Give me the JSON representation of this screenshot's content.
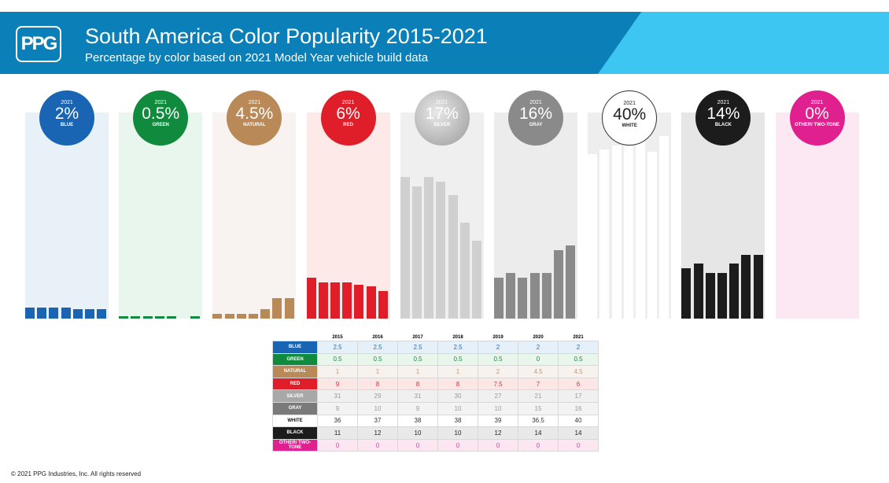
{
  "header": {
    "logo": "PPG",
    "title": "South America Color Popularity 2015-2021",
    "subtitle": "Percentage by color based on 2021 Model Year vehicle build data"
  },
  "chart_data": {
    "type": "bar",
    "title": "South America Color Popularity 2015-2021",
    "subtitle": "Percentage by color based on 2021 Model Year vehicle build data",
    "categories": [
      "2015",
      "2016",
      "2017",
      "2018",
      "2019",
      "2020",
      "2021"
    ],
    "highlight_year": "2021",
    "series": [
      {
        "name": "BLUE",
        "pct": "2%",
        "color": "#1a64b4",
        "bg": "#e8f0f8",
        "rowbg": "#e6f0f9",
        "text": "#2a6db5",
        "values": [
          2.5,
          2.5,
          2.5,
          2.5,
          2,
          2,
          2
        ]
      },
      {
        "name": "GREEN",
        "pct": "0.5%",
        "color": "#108a3c",
        "bg": "#e9f6ee",
        "rowbg": "#e8f6ec",
        "text": "#1f8a48",
        "values": [
          0.5,
          0.5,
          0.5,
          0.5,
          0.5,
          0,
          0.5
        ]
      },
      {
        "name": "NATURAL",
        "pct": "4.5%",
        "color": "#b98a58",
        "bg": "#f8f3f0",
        "rowbg": "#f8f2ee",
        "text": "#c09a78",
        "values": [
          1,
          1,
          1,
          1,
          2,
          4.5,
          4.5
        ]
      },
      {
        "name": "RED",
        "pct": "6%",
        "color": "#e01e2a",
        "bg": "#fde9e8",
        "rowbg": "#fce6e6",
        "text": "#e0303a",
        "values": [
          9,
          8,
          8,
          8,
          7.5,
          7,
          6
        ]
      },
      {
        "name": "SILVER",
        "pct": "17%",
        "color": "#d0d0d0",
        "bg": "#efefef",
        "rowbg": "#f0f0f0",
        "text": "#9a9a9a",
        "values": [
          31,
          29,
          31,
          30,
          27,
          21,
          17
        ]
      },
      {
        "name": "GRAY",
        "pct": "16%",
        "color": "#8a8a8a",
        "bg": "#ececec",
        "rowbg": "#f3f3f3",
        "text": "#9a9a9a",
        "values": [
          9,
          10,
          9,
          10,
          10,
          15,
          16
        ]
      },
      {
        "name": "WHITE",
        "pct": "40%",
        "color": "#ffffff",
        "bg": "#eeeeee",
        "rowbg": "#ffffff",
        "text": "#333333",
        "values": [
          36,
          37,
          38,
          38,
          39,
          36.5,
          40
        ]
      },
      {
        "name": "BLACK",
        "pct": "14%",
        "color": "#1c1c1c",
        "bg": "#e6e6e6",
        "rowbg": "#e9e9e9",
        "text": "#222222",
        "values": [
          11,
          12,
          10,
          10,
          12,
          14,
          14
        ]
      },
      {
        "name": "OTHER/ TWO-TONE",
        "pct": "0%",
        "color": "#e0208e",
        "bg": "#fce8f3",
        "rowbg": "#fce6f2",
        "text": "#d04a9a",
        "values": [
          0,
          0,
          0,
          0,
          0,
          0,
          0
        ]
      }
    ]
  },
  "footer": {
    "copyright": "© 2021 PPG Industries, Inc. All rights reserved"
  }
}
